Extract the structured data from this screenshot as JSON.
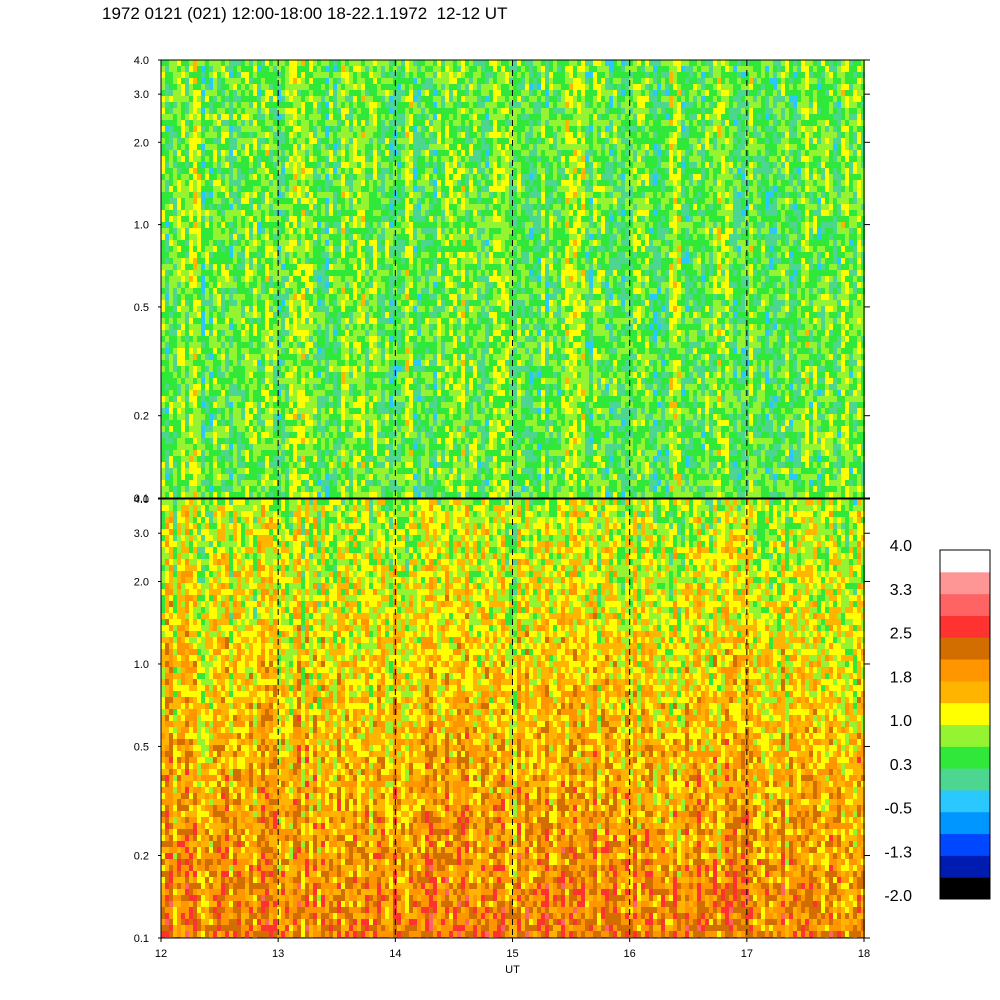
{
  "title": "1972 0121 (021) 12:00-18:00 18-22.1.1972  12-12 UT",
  "colors": {
    "cb": [
      "#000000",
      "#001cb0",
      "#0048ff",
      "#0096ff",
      "#2ac8ff",
      "#4cd690",
      "#30e83a",
      "#94f432",
      "#ffff00",
      "#ffb400",
      "#ff9600",
      "#d26e00",
      "#ff3232",
      "#ff6464",
      "#ff9696",
      "#ffffff"
    ]
  },
  "chart_data": {
    "type": "heatmap",
    "panels": [
      {
        "name": "top",
        "ytick_values": [
          0.1,
          0.2,
          0.5,
          1.0,
          2.0,
          3.0,
          4.0
        ],
        "ytick_labels": [
          "0.1",
          "0.2",
          "0.5",
          "1.0",
          "2.0",
          "3.0",
          "4.0"
        ],
        "ylim": [
          0.1,
          4.0
        ],
        "yscale": "log",
        "dominant_level_range": [
          0.0,
          1.2
        ]
      },
      {
        "name": "bottom",
        "ytick_values": [
          0.1,
          0.2,
          0.5,
          1.0,
          2.0,
          3.0,
          4.0
        ],
        "ytick_labels": [
          "0.1",
          "0.2",
          "0.5",
          "1.0",
          "2.0",
          "3.0",
          "4.0"
        ],
        "ylim": [
          0.1,
          4.0
        ],
        "yscale": "log",
        "dominant_level_range": [
          0.8,
          2.2
        ]
      }
    ],
    "xlim": [
      12,
      18
    ],
    "xticks": [
      12,
      13,
      14,
      15,
      16,
      17,
      18
    ],
    "xtick_labels": [
      "12",
      "13",
      "14",
      "15",
      "16",
      "17",
      "18"
    ],
    "xlabel": "UT",
    "vlines": [
      13,
      14,
      15,
      16,
      17
    ],
    "colorbar": {
      "min": -2.0,
      "max": 4.0,
      "labels": [
        "4.0",
        "3.3",
        "2.5",
        "1.8",
        "1.0",
        "0.3",
        "-0.5",
        "-1.3",
        "-2.0"
      ]
    }
  }
}
